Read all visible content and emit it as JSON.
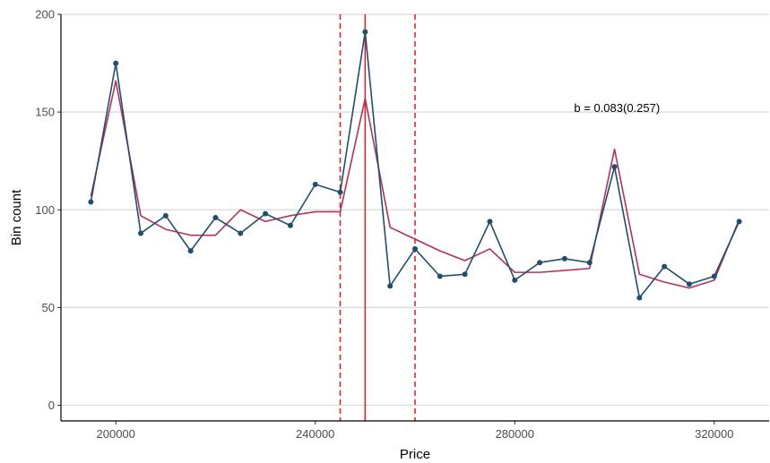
{
  "chart_data": {
    "type": "line",
    "title": "",
    "xlabel": "Price",
    "ylabel": "Bin count",
    "xlim": [
      189000,
      331000
    ],
    "ylim": [
      -8,
      200
    ],
    "x_ticks": [
      200000,
      240000,
      280000,
      320000
    ],
    "y_ticks": [
      0,
      50,
      100,
      150,
      200
    ],
    "grid": "horizontal",
    "annotation": "b = 0.083(0.257)",
    "annotation_at": {
      "x": 300500,
      "y": 152
    },
    "vlines": [
      {
        "x": 250000,
        "style": "solid",
        "color": "#e41a1c"
      },
      {
        "x": 245000,
        "style": "dashed",
        "color": "#e41a1c"
      },
      {
        "x": 260000,
        "style": "dashed",
        "color": "#e41a1c"
      }
    ],
    "series": [
      {
        "style": "line+points",
        "color": "#1f4e6e",
        "x": [
          195000,
          200000,
          205000,
          210000,
          215000,
          220000,
          225000,
          230000,
          235000,
          240000,
          245000,
          250000,
          255000,
          260000,
          265000,
          270000,
          275000,
          280000,
          285000,
          290000,
          295000,
          300000,
          305000,
          310000,
          315000,
          320000,
          325000
        ],
        "y": [
          104,
          175,
          88,
          97,
          79,
          96,
          88,
          98,
          92,
          113,
          109,
          191,
          61,
          80,
          66,
          67,
          94,
          64,
          73,
          75,
          73,
          122,
          55,
          71,
          62,
          66,
          94
        ]
      },
      {
        "style": "line",
        "color": "#b5315c",
        "x": [
          195000,
          200000,
          205000,
          210000,
          215000,
          220000,
          225000,
          230000,
          235000,
          240000,
          245000,
          250000,
          255000,
          260000,
          265000,
          270000,
          275000,
          280000,
          285000,
          290000,
          295000,
          300000,
          305000,
          310000,
          315000,
          320000,
          325000
        ],
        "y": [
          107,
          166,
          97,
          90,
          87,
          87,
          100,
          94,
          97,
          99,
          99,
          157,
          91,
          85,
          79,
          74,
          80,
          68,
          68,
          69,
          70,
          131,
          67,
          63,
          60,
          64,
          95
        ]
      }
    ]
  }
}
